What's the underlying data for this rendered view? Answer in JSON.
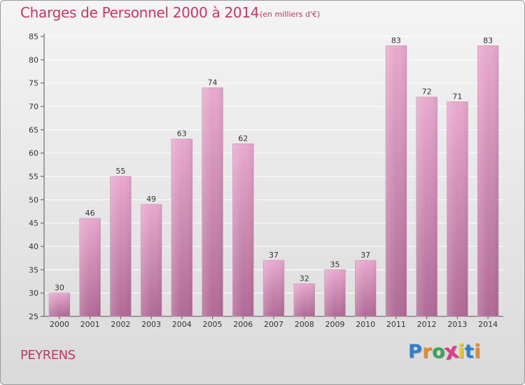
{
  "title": "Charges de Personnel 2000 à 2014",
  "subtitle": "(en milliers d'€)",
  "commune": "PEYRENS",
  "logo": {
    "text": "Proxiti",
    "letter_colors": [
      "#2e7fd0",
      "#e8892b",
      "#3aa655",
      "#e03a8c",
      "#e8c72b",
      "#2e7fd0",
      "#e8892b"
    ]
  },
  "colors": {
    "bar_top": "#e8a9cd",
    "bar_bottom": "#b06a96",
    "text_accent": "#cc3366"
  },
  "chart_data": {
    "type": "bar",
    "categories": [
      "2000",
      "2001",
      "2002",
      "2003",
      "2004",
      "2005",
      "2006",
      "2007",
      "2008",
      "2009",
      "2010",
      "2011",
      "2012",
      "2013",
      "2014"
    ],
    "values": [
      30,
      46,
      55,
      49,
      63,
      74,
      62,
      37,
      32,
      35,
      37,
      83,
      72,
      71,
      83
    ],
    "title": "Charges de Personnel 2000 à 2014",
    "subtitle": "(en milliers d'€)",
    "xlabel": "",
    "ylabel": "",
    "ylim": [
      25,
      85
    ],
    "yticks": [
      25,
      30,
      35,
      40,
      45,
      50,
      55,
      60,
      65,
      70,
      75,
      80,
      85
    ],
    "grid": true,
    "legend": "none"
  }
}
